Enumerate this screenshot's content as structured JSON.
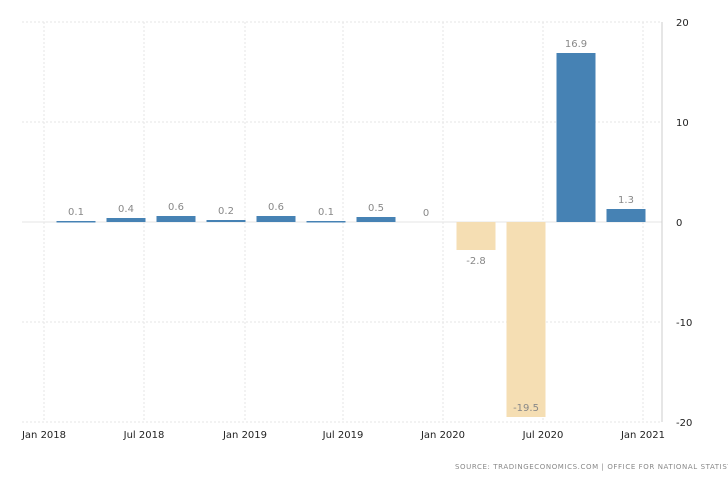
{
  "chart_data": {
    "type": "bar",
    "categories": [
      "Q1 2018",
      "Q2 2018",
      "Q3 2018",
      "Q4 2018",
      "Q1 2019",
      "Q2 2019",
      "Q3 2019",
      "Q4 2019",
      "Q1 2020",
      "Q2 2020",
      "Q3 2020",
      "Q4 2020"
    ],
    "values": [
      0.1,
      0.4,
      0.6,
      0.2,
      0.6,
      0.1,
      0.5,
      0,
      -2.8,
      -19.5,
      16.9,
      1.3
    ],
    "data_labels": [
      "0.1",
      "0.4",
      "0.6",
      "0.2",
      "0.6",
      "0.1",
      "0.5",
      "0",
      "-2.8",
      "-19.5",
      "16.9",
      "1.3"
    ],
    "ylim": [
      -20,
      20
    ],
    "y_ticks": [
      "20",
      "10",
      "0",
      "-10",
      "-20"
    ],
    "y_tick_values": [
      20,
      10,
      0,
      -10,
      -20
    ],
    "x_ticks": [
      "Jan 2018",
      "Jul 2018",
      "Jan 2019",
      "Jul 2019",
      "Jan 2020",
      "Jul 2020",
      "Jan 2021"
    ],
    "y_axis_side": "right",
    "grid": true,
    "colors": {
      "positive": "#4682b4",
      "negative": "#f5deb3",
      "grid": "#e6e6e6",
      "label": "#888888"
    },
    "title": "",
    "xlabel": "",
    "ylabel": ""
  },
  "source": "SOURCE: TRADINGECONOMICS.COM  |  OFFICE FOR NATIONAL STATISTICS"
}
